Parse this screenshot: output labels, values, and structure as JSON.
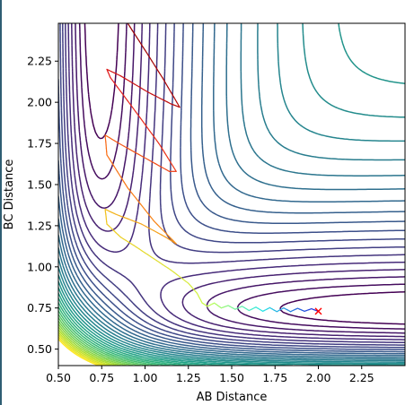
{
  "chart_data": {
    "type": "contour",
    "title": "",
    "xlabel": "AB Distance",
    "ylabel": "BC Distance",
    "xlim": [
      0.5,
      2.5
    ],
    "ylim": [
      0.4,
      2.48
    ],
    "xticks": [
      "0.50",
      "0.75",
      "1.00",
      "1.25",
      "1.50",
      "1.75",
      "2.00",
      "2.25"
    ],
    "yticks": [
      "0.50",
      "0.75",
      "1.00",
      "1.25",
      "1.50",
      "1.75",
      "2.00",
      "2.25"
    ],
    "xtick_values": [
      0.5,
      0.75,
      1.0,
      1.25,
      1.5,
      1.75,
      2.0,
      2.25
    ],
    "ytick_values": [
      0.5,
      0.75,
      1.0,
      1.25,
      1.5,
      1.75,
      2.0,
      2.25
    ],
    "grid": false,
    "legend": "none",
    "colormap": "viridis",
    "series": [
      {
        "type": "line",
        "style": "spring-colored trajectory",
        "points": [
          [
            2.0,
            0.73
          ],
          [
            1.96,
            0.745
          ],
          [
            1.92,
            0.73
          ],
          [
            1.88,
            0.748
          ],
          [
            1.84,
            0.728
          ],
          [
            1.8,
            0.75
          ],
          [
            1.76,
            0.728
          ],
          [
            1.72,
            0.752
          ],
          [
            1.68,
            0.73
          ],
          [
            1.64,
            0.755
          ],
          [
            1.6,
            0.735
          ],
          [
            1.56,
            0.76
          ],
          [
            1.52,
            0.742
          ],
          [
            1.48,
            0.765
          ],
          [
            1.44,
            0.75
          ],
          [
            1.4,
            0.78
          ],
          [
            1.36,
            0.76
          ],
          [
            1.33,
            0.78
          ],
          [
            1.3,
            0.84
          ],
          [
            1.25,
            0.9
          ],
          [
            1.15,
            0.98
          ],
          [
            1.05,
            1.05
          ],
          [
            0.95,
            1.12
          ],
          [
            0.86,
            1.18
          ],
          [
            0.78,
            1.26
          ],
          [
            0.77,
            1.35
          ],
          [
            0.83,
            1.32
          ],
          [
            0.98,
            1.26
          ],
          [
            1.12,
            1.18
          ],
          [
            1.18,
            1.14
          ],
          [
            1.05,
            1.28
          ],
          [
            0.9,
            1.48
          ],
          [
            0.78,
            1.68
          ],
          [
            0.77,
            1.8
          ],
          [
            0.85,
            1.75
          ],
          [
            1.02,
            1.65
          ],
          [
            1.14,
            1.58
          ],
          [
            1.18,
            1.58
          ],
          [
            1.08,
            1.75
          ],
          [
            0.92,
            1.98
          ],
          [
            0.8,
            2.15
          ],
          [
            0.78,
            2.2
          ],
          [
            0.86,
            2.16
          ],
          [
            1.02,
            2.06
          ],
          [
            1.15,
            1.99
          ],
          [
            1.2,
            1.97
          ],
          [
            1.1,
            2.15
          ],
          [
            0.98,
            2.35
          ],
          [
            0.9,
            2.48
          ]
        ]
      },
      {
        "type": "scatter",
        "marker": "x",
        "color": "#ff0000",
        "points": [
          [
            2.0,
            0.73
          ]
        ]
      }
    ]
  }
}
